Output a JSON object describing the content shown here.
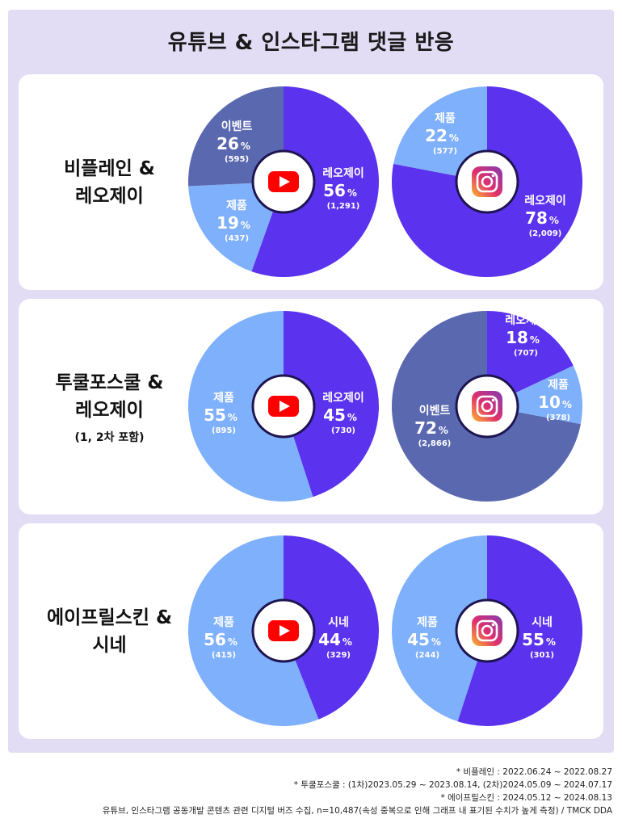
{
  "title": "유튜브 & 인스타그램 댓글 반응",
  "colors": {
    "frame": "#e2dcf5",
    "reojei": "#5b32ee",
    "event": "#5a68b0",
    "product": "#7fb0fb",
    "sine": "#5b32ee",
    "youtube": "#ff0000",
    "instagram": "#c13584"
  },
  "panels": [
    {
      "brand": "비플레인 &\n레오제이",
      "sub": ""
    },
    {
      "brand": "투쿨포스쿨 &\n레오제이",
      "sub": "(1, 2차 포함)"
    },
    {
      "brand": "에이프릴스킨 &\n시네",
      "sub": ""
    }
  ],
  "chart_data": [
    {
      "type": "pie",
      "brand": "비플레인 & 레오제이",
      "platform": "youtube",
      "icon": "youtube-icon",
      "slices": [
        {
          "label": "레오제이",
          "percent": 56,
          "count": "(1,291)",
          "color": "#5b32ee"
        },
        {
          "label": "제품",
          "percent": 19,
          "count": "(437)",
          "color": "#7fb0fb"
        },
        {
          "label": "이벤트",
          "percent": 26,
          "count": "(595)",
          "color": "#5a68b0"
        }
      ]
    },
    {
      "type": "pie",
      "brand": "비플레인 & 레오제이",
      "platform": "instagram",
      "icon": "instagram-icon",
      "slices": [
        {
          "label": "레오제이",
          "percent": 78,
          "count": "(2,009)",
          "color": "#5b32ee"
        },
        {
          "label": "제품",
          "percent": 22,
          "count": "(577)",
          "color": "#7fb0fb"
        }
      ]
    },
    {
      "type": "pie",
      "brand": "투쿨포스쿨 & 레오제이",
      "platform": "youtube",
      "icon": "youtube-icon",
      "slices": [
        {
          "label": "레오제이",
          "percent": 45,
          "count": "(730)",
          "color": "#5b32ee"
        },
        {
          "label": "제품",
          "percent": 55,
          "count": "(895)",
          "color": "#7fb0fb"
        }
      ]
    },
    {
      "type": "pie",
      "brand": "투쿨포스쿨 & 레오제이",
      "platform": "instagram",
      "icon": "instagram-icon",
      "slices": [
        {
          "label": "레오제이",
          "percent": 18,
          "count": "(707)",
          "color": "#5b32ee"
        },
        {
          "label": "제품",
          "percent": 10,
          "count": "(378)",
          "color": "#7fb0fb"
        },
        {
          "label": "이벤트",
          "percent": 72,
          "count": "(2,866)",
          "color": "#5a68b0"
        }
      ]
    },
    {
      "type": "pie",
      "brand": "에이프릴스킨 & 시네",
      "platform": "youtube",
      "icon": "youtube-icon",
      "slices": [
        {
          "label": "시네",
          "percent": 44,
          "count": "(329)",
          "color": "#5b32ee"
        },
        {
          "label": "제품",
          "percent": 56,
          "count": "(415)",
          "color": "#7fb0fb"
        }
      ]
    },
    {
      "type": "pie",
      "brand": "에이프릴스킨 & 시네",
      "platform": "instagram",
      "icon": "instagram-icon",
      "slices": [
        {
          "label": "시네",
          "percent": 55,
          "count": "(301)",
          "color": "#5b32ee"
        },
        {
          "label": "제품",
          "percent": 45,
          "count": "(244)",
          "color": "#7fb0fb"
        }
      ]
    }
  ],
  "footnotes": [
    "* 비플레인 : 2022.06.24 ~ 2022.08.27",
    "* 투쿨포스쿨 : (1차)2023.05.29 ~ 2023.08.14, (2차)2024.05.09 ~ 2024.07.17",
    "* 에이프릴스킨 : 2024.05.12 ~ 2024.08.13",
    "유튜브, 인스타그램 공동개발 콘텐츠 관련 디지털 버즈 수집, n=10,487(속성 중복으로 인해 그래프 내 표기된 수치가 높게 측정) / TMCK DDA"
  ]
}
